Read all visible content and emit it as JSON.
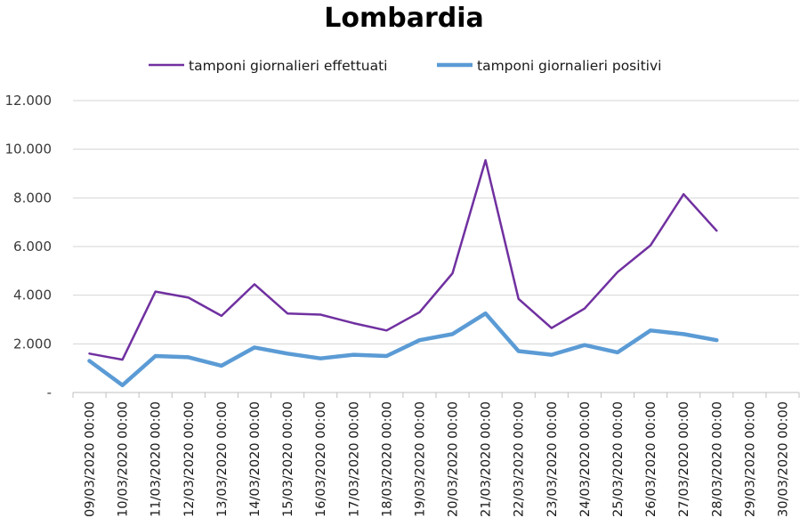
{
  "chart_data": {
    "type": "line",
    "title": "Lombardia",
    "xlabel": "",
    "ylabel": "",
    "ylim": [
      0,
      12000
    ],
    "yticks": [
      0,
      2000,
      4000,
      6000,
      8000,
      10000,
      12000
    ],
    "ytick_labels": [
      "-",
      "2.000",
      "4.000",
      "6.000",
      "8.000",
      "10.000",
      "12.000"
    ],
    "grid": true,
    "legend_position": "top-center",
    "categories": [
      "09/03/2020 00:00",
      "10/03/2020 00:00",
      "11/03/2020 00:00",
      "12/03/2020 00:00",
      "13/03/2020 00:00",
      "14/03/2020 00:00",
      "15/03/2020 00:00",
      "16/03/2020 00:00",
      "17/03/2020 00:00",
      "18/03/2020 00:00",
      "19/03/2020 00:00",
      "20/03/2020 00:00",
      "21/03/2020 00:00",
      "22/03/2020 00:00",
      "23/03/2020 00:00",
      "24/03/2020 00:00",
      "25/03/2020 00:00",
      "26/03/2020 00:00",
      "27/03/2020 00:00",
      "28/03/2020 00:00",
      "29/03/2020 00:00",
      "30/03/2020 00:00"
    ],
    "series": [
      {
        "name": "tamponi giornalieri effettuati",
        "color": "#7030a0",
        "values": [
          1600,
          1350,
          4150,
          3900,
          3150,
          4450,
          3250,
          3200,
          2850,
          2550,
          3300,
          4900,
          9550,
          3850,
          2650,
          3450,
          4950,
          6050,
          8150,
          6650,
          null,
          null
        ]
      },
      {
        "name": "tamponi giornalieri positivi",
        "color": "#5b9bd5",
        "values": [
          1300,
          300,
          1500,
          1450,
          1100,
          1850,
          1600,
          1400,
          1550,
          1500,
          2150,
          2400,
          3250,
          1700,
          1550,
          1950,
          1650,
          2550,
          2400,
          2150,
          null,
          null
        ]
      }
    ]
  }
}
